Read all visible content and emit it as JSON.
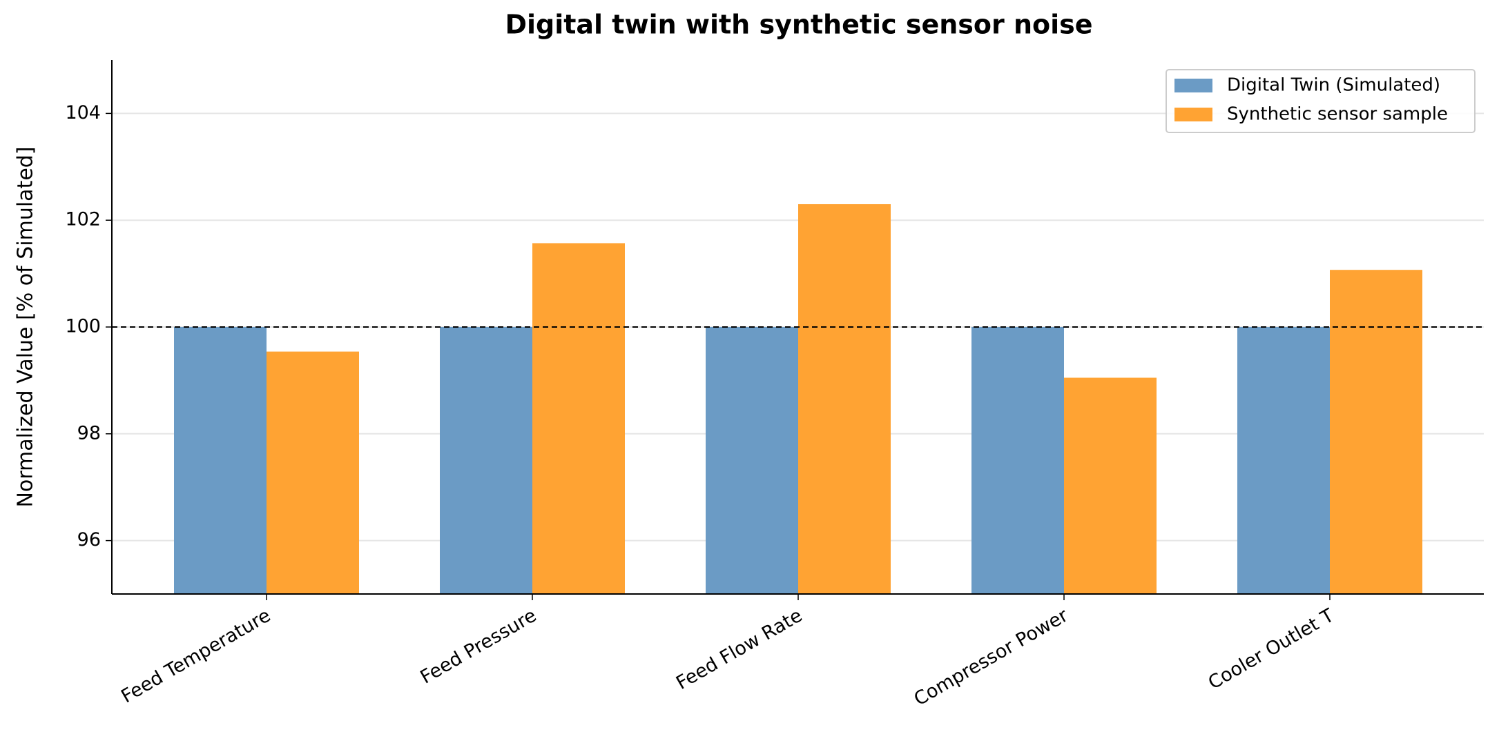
{
  "chart_data": {
    "type": "bar",
    "title": "Digital twin with synthetic sensor noise",
    "y_label": "Normalized Value [% of Simulated]",
    "categories": [
      "Feed Temperature",
      "Feed Pressure",
      "Feed Flow Rate",
      "Compressor Power",
      "Cooler Outlet T"
    ],
    "series": [
      {
        "name": "Digital Twin (Simulated)",
        "color": "#6b9bc5",
        "values": [
          100,
          100,
          100,
          100,
          100
        ]
      },
      {
        "name": "Synthetic sensor sample",
        "color": "#ffa333",
        "values": [
          99.54,
          101.57,
          102.3,
          99.05,
          101.07
        ]
      }
    ],
    "reference_line": 100,
    "ylim": [
      95,
      105
    ],
    "yticks": [
      96,
      98,
      100,
      102,
      104
    ],
    "grid": true,
    "legend": "upper right"
  }
}
